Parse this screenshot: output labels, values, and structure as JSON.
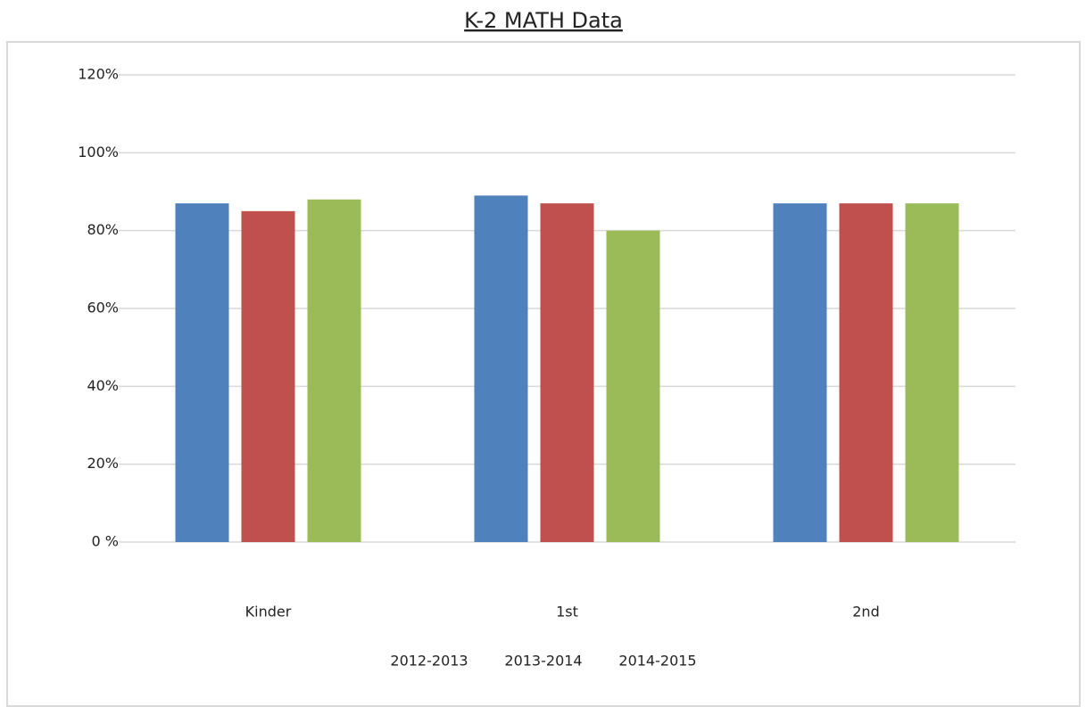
{
  "chart_data": {
    "type": "bar",
    "title": "K-2 MATH Data",
    "categories": [
      "Kinder",
      "1st",
      "2nd"
    ],
    "series": [
      {
        "name": "2012-2013",
        "color": "#4f81bd",
        "values": [
          87,
          89,
          87
        ]
      },
      {
        "name": "2013-2014",
        "color": "#c0504d",
        "values": [
          85,
          87,
          87
        ]
      },
      {
        "name": "2014-2015",
        "color": "#9bbb59",
        "values": [
          88,
          80,
          87
        ]
      }
    ],
    "ylim": [
      0,
      120
    ],
    "yticks": [
      {
        "value": 0,
        "label": "0 %"
      },
      {
        "value": 20,
        "label": "20%"
      },
      {
        "value": 40,
        "label": "40%"
      },
      {
        "value": 60,
        "label": "60%"
      },
      {
        "value": 80,
        "label": "80%"
      },
      {
        "value": 100,
        "label": "100%"
      },
      {
        "value": 120,
        "label": "120%"
      }
    ],
    "grid": true
  }
}
